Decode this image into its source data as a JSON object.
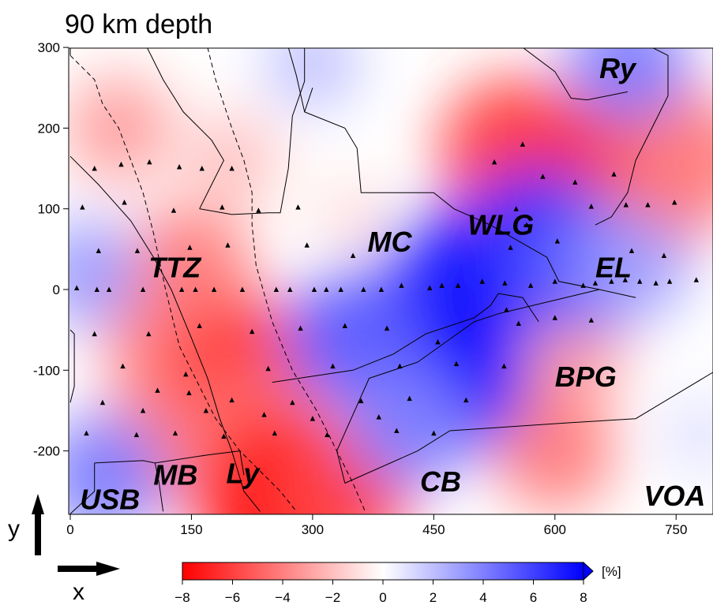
{
  "chart_data": {
    "type": "heatmap",
    "title": "90 km depth",
    "xlabel": "x",
    "ylabel": "y",
    "xlim": [
      0,
      800
    ],
    "ylim": [
      -280,
      300
    ],
    "x_ticks": [
      0,
      150,
      300,
      450,
      600,
      750
    ],
    "y_ticks": [
      300,
      200,
      100,
      0,
      -100,
      -200
    ],
    "colorbar": {
      "unit": "[%]",
      "range": [
        -8,
        8
      ],
      "ticks": [
        -8,
        -6,
        -4,
        -2,
        0,
        2,
        4,
        6,
        8
      ],
      "low_color": "#ff0000",
      "mid_color": "#ffffff",
      "high_color": "#0000ff",
      "extend": "max"
    },
    "anomalies": [
      {
        "x": 60,
        "y": 200,
        "value": -3
      },
      {
        "x": 200,
        "y": 160,
        "value": -2
      },
      {
        "x": 150,
        "y": 30,
        "value": -4
      },
      {
        "x": 120,
        "y": -70,
        "value": -4
      },
      {
        "x": 210,
        "y": -100,
        "value": -6
      },
      {
        "x": 240,
        "y": -180,
        "value": -4
      },
      {
        "x": 260,
        "y": -255,
        "value": -8
      },
      {
        "x": 330,
        "y": -250,
        "value": -6
      },
      {
        "x": 100,
        "y": -200,
        "value": -4
      },
      {
        "x": 550,
        "y": 170,
        "value": -6
      },
      {
        "x": 700,
        "y": 180,
        "value": -7
      },
      {
        "x": 720,
        "y": 120,
        "value": -5
      },
      {
        "x": 620,
        "y": -80,
        "value": -3
      },
      {
        "x": 600,
        "y": -200,
        "value": -4
      },
      {
        "x": 780,
        "y": 160,
        "value": -4
      },
      {
        "x": 350,
        "y": 90,
        "value": -1
      },
      {
        "x": 480,
        "y": 0,
        "value": 7
      },
      {
        "x": 460,
        "y": -100,
        "value": 8
      },
      {
        "x": 580,
        "y": 50,
        "value": 7
      },
      {
        "x": 640,
        "y": 30,
        "value": 5
      },
      {
        "x": 350,
        "y": -60,
        "value": 5
      },
      {
        "x": 420,
        "y": -170,
        "value": 4
      },
      {
        "x": 690,
        "y": 280,
        "value": 4
      },
      {
        "x": 20,
        "y": 20,
        "value": 3
      },
      {
        "x": 40,
        "y": -230,
        "value": 4
      },
      {
        "x": 700,
        "y": 30,
        "value": 3
      },
      {
        "x": 300,
        "y": 280,
        "value": 2
      },
      {
        "x": 780,
        "y": -180,
        "value": 1
      }
    ],
    "stations": [
      [
        30,
        150
      ],
      [
        63,
        155
      ],
      [
        98,
        158
      ],
      [
        135,
        152
      ],
      [
        163,
        150
      ],
      [
        200,
        150
      ],
      [
        15,
        102
      ],
      [
        67,
        108
      ],
      [
        128,
        98
      ],
      [
        188,
        102
      ],
      [
        233,
        98
      ],
      [
        282,
        102
      ],
      [
        35,
        48
      ],
      [
        83,
        48
      ],
      [
        148,
        52
      ],
      [
        195,
        55
      ],
      [
        293,
        55
      ],
      [
        350,
        42
      ],
      [
        8,
        2
      ],
      [
        33,
        0
      ],
      [
        48,
        0
      ],
      [
        90,
        0
      ],
      [
        138,
        0
      ],
      [
        155,
        0
      ],
      [
        178,
        0
      ],
      [
        213,
        0
      ],
      [
        255,
        0
      ],
      [
        272,
        0
      ],
      [
        302,
        0
      ],
      [
        317,
        0
      ],
      [
        335,
        0
      ],
      [
        363,
        0
      ],
      [
        385,
        0
      ],
      [
        410,
        5
      ],
      [
        445,
        2
      ],
      [
        460,
        5
      ],
      [
        480,
        5
      ],
      [
        510,
        10
      ],
      [
        538,
        8
      ],
      [
        570,
        5
      ],
      [
        600,
        10
      ],
      [
        635,
        5
      ],
      [
        650,
        8
      ],
      [
        670,
        10
      ],
      [
        687,
        12
      ],
      [
        705,
        10
      ],
      [
        725,
        8
      ],
      [
        742,
        10
      ],
      [
        775,
        12
      ],
      [
        30,
        -55
      ],
      [
        97,
        -55
      ],
      [
        160,
        -45
      ],
      [
        225,
        -52
      ],
      [
        285,
        -48
      ],
      [
        340,
        -45
      ],
      [
        392,
        -48
      ],
      [
        455,
        -65
      ],
      [
        540,
        -25
      ],
      [
        555,
        -42
      ],
      [
        600,
        -35
      ],
      [
        645,
        -38
      ],
      [
        65,
        -95
      ],
      [
        143,
        -105
      ],
      [
        245,
        -98
      ],
      [
        325,
        -95
      ],
      [
        408,
        -95
      ],
      [
        478,
        -92
      ],
      [
        537,
        -95
      ],
      [
        108,
        -125
      ],
      [
        147,
        -128
      ],
      [
        200,
        -137
      ],
      [
        275,
        -140
      ],
      [
        360,
        -138
      ],
      [
        420,
        -135
      ],
      [
        490,
        -137
      ],
      [
        40,
        -140
      ],
      [
        90,
        -150
      ],
      [
        168,
        -150
      ],
      [
        240,
        -155
      ],
      [
        300,
        -160
      ],
      [
        382,
        -158
      ],
      [
        20,
        -178
      ],
      [
        82,
        -180
      ],
      [
        130,
        -178
      ],
      [
        190,
        -182
      ],
      [
        253,
        -178
      ],
      [
        318,
        -180
      ],
      [
        404,
        -175
      ],
      [
        450,
        -178
      ],
      [
        565,
        80
      ],
      [
        560,
        180
      ],
      [
        525,
        158
      ],
      [
        585,
        140
      ],
      [
        625,
        133
      ],
      [
        673,
        143
      ],
      [
        688,
        105
      ],
      [
        715,
        105
      ],
      [
        748,
        108
      ],
      [
        552,
        100
      ],
      [
        545,
        52
      ],
      [
        603,
        60
      ],
      [
        645,
        103
      ],
      [
        695,
        48
      ],
      [
        735,
        42
      ]
    ],
    "regions": [
      {
        "label": "Ry",
        "x": 655,
        "y": 262
      },
      {
        "label": "TTZ",
        "x": 97,
        "y": 15
      },
      {
        "label": "MC",
        "x": 368,
        "y": 47
      },
      {
        "label": "WLG",
        "x": 492,
        "y": 68
      },
      {
        "label": "EL",
        "x": 650,
        "y": 15
      },
      {
        "label": "BPG",
        "x": 600,
        "y": -120
      },
      {
        "label": "MB",
        "x": 103,
        "y": -242
      },
      {
        "label": "Ly",
        "x": 193,
        "y": -240
      },
      {
        "label": "USB",
        "x": 12,
        "y": -272
      },
      {
        "label": "CB",
        "x": 433,
        "y": -250
      },
      {
        "label": "VOA",
        "x": 710,
        "y": -268
      }
    ],
    "solid_lines": [
      [
        [
          0,
          300
        ],
        [
          0,
          290
        ]
      ],
      [
        [
          0,
          165
        ],
        [
          35,
          130
        ],
        [
          75,
          85
        ],
        [
          103,
          40
        ],
        [
          125,
          0
        ],
        [
          150,
          -60
        ],
        [
          170,
          -110
        ],
        [
          185,
          -160
        ],
        [
          200,
          -200
        ],
        [
          215,
          -250
        ],
        [
          235,
          -275
        ]
      ],
      [
        [
          95,
          300
        ],
        [
          115,
          260
        ],
        [
          140,
          220
        ],
        [
          175,
          185
        ],
        [
          190,
          160
        ],
        [
          175,
          130
        ],
        [
          160,
          100
        ]
      ],
      [
        [
          160,
          100
        ],
        [
          200,
          93
        ],
        [
          245,
          95
        ],
        [
          260,
          95
        ],
        [
          270,
          150
        ],
        [
          275,
          215
        ],
        [
          290,
          258
        ],
        [
          290,
          300
        ]
      ],
      [
        [
          270,
          300
        ],
        [
          280,
          265
        ],
        [
          290,
          220
        ]
      ],
      [
        [
          290,
          220
        ],
        [
          340,
          200
        ],
        [
          355,
          175
        ],
        [
          360,
          120
        ],
        [
          450,
          120
        ],
        [
          475,
          100
        ],
        [
          520,
          80
        ],
        [
          590,
          40
        ],
        [
          605,
          10
        ],
        [
          655,
          0
        ],
        [
          700,
          -10
        ]
      ],
      [
        [
          290,
          220
        ],
        [
          300,
          250
        ]
      ],
      [
        [
          560,
          300
        ],
        [
          600,
          270
        ],
        [
          620,
          237
        ],
        [
          640,
          235
        ],
        [
          690,
          245
        ]
      ],
      [
        [
          720,
          300
        ],
        [
          740,
          290
        ],
        [
          740,
          240
        ],
        [
          720,
          200
        ],
        [
          700,
          160
        ],
        [
          690,
          120
        ],
        [
          670,
          90
        ],
        [
          650,
          80
        ]
      ],
      [
        [
          655,
          0
        ],
        [
          530,
          -30
        ],
        [
          500,
          -40
        ],
        [
          430,
          -90
        ],
        [
          370,
          -110
        ],
        [
          330,
          -200
        ],
        [
          340,
          -240
        ]
      ],
      [
        [
          340,
          -240
        ],
        [
          430,
          -200
        ],
        [
          470,
          -175
        ]
      ],
      [
        [
          470,
          -175
        ],
        [
          620,
          -165
        ],
        [
          700,
          -160
        ],
        [
          800,
          -100
        ]
      ],
      [
        [
          250,
          -115
        ],
        [
          350,
          -100
        ],
        [
          400,
          -80
        ],
        [
          440,
          -55
        ],
        [
          500,
          -35
        ],
        [
          520,
          -20
        ],
        [
          530,
          -5
        ],
        [
          560,
          -10
        ],
        [
          580,
          -40
        ]
      ],
      [
        [
          0,
          -50
        ],
        [
          5,
          -55
        ],
        [
          5,
          -120
        ],
        [
          0,
          -140
        ]
      ],
      [
        [
          30,
          -215
        ],
        [
          90,
          -212
        ],
        [
          105,
          -215
        ],
        [
          110,
          -240
        ],
        [
          115,
          -275
        ]
      ],
      [
        [
          105,
          -215
        ],
        [
          170,
          -205
        ],
        [
          210,
          -200
        ],
        [
          215,
          -230
        ]
      ],
      [
        [
          0,
          -278
        ],
        [
          30,
          -250
        ],
        [
          30,
          -215
        ]
      ]
    ],
    "dashed_lines": [
      [
        [
          0,
          290
        ],
        [
          30,
          260
        ],
        [
          40,
          230
        ],
        [
          60,
          200
        ],
        [
          75,
          160
        ],
        [
          90,
          120
        ],
        [
          103,
          70
        ],
        [
          118,
          0
        ],
        [
          135,
          -70
        ],
        [
          150,
          -100
        ],
        [
          180,
          -160
        ],
        [
          210,
          -200
        ],
        [
          260,
          -250
        ],
        [
          280,
          -275
        ]
      ],
      [
        [
          170,
          300
        ],
        [
          180,
          260
        ],
        [
          190,
          230
        ],
        [
          200,
          200
        ],
        [
          215,
          160
        ],
        [
          225,
          120
        ],
        [
          225,
          80
        ],
        [
          230,
          30
        ],
        [
          250,
          -40
        ],
        [
          275,
          -100
        ],
        [
          305,
          -150
        ],
        [
          330,
          -200
        ],
        [
          350,
          -240
        ],
        [
          365,
          -275
        ]
      ]
    ]
  }
}
